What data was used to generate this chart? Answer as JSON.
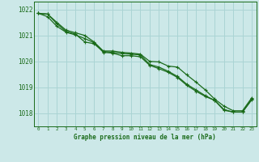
{
  "title": "Graphe pression niveau de la mer (hPa)",
  "background_color": "#cce8e8",
  "grid_color": "#aad4d4",
  "line_color": "#1a6b1a",
  "xlim": [
    -0.5,
    23.5
  ],
  "ylim": [
    1017.5,
    1022.3
  ],
  "yticks": [
    1018,
    1019,
    1020,
    1021,
    1022
  ],
  "xticks": [
    0,
    1,
    2,
    3,
    4,
    5,
    6,
    7,
    8,
    9,
    10,
    11,
    12,
    13,
    14,
    15,
    16,
    17,
    18,
    19,
    20,
    21,
    22,
    23
  ],
  "line1": [
    1021.85,
    1021.82,
    1021.5,
    1021.2,
    1021.1,
    1021.0,
    1020.75,
    1020.4,
    1020.4,
    1020.35,
    1020.32,
    1020.28,
    1020.0,
    1019.98,
    1019.82,
    1019.78,
    1019.48,
    1019.2,
    1018.9,
    1018.55,
    1018.28,
    1018.1,
    1018.1,
    1018.6
  ],
  "line2": [
    1021.85,
    1021.82,
    1021.45,
    1021.15,
    1021.05,
    1020.75,
    1020.68,
    1020.38,
    1020.35,
    1020.3,
    1020.28,
    1020.25,
    1019.88,
    1019.78,
    1019.62,
    1019.42,
    1019.12,
    1018.9,
    1018.68,
    1018.5,
    1018.15,
    1018.05,
    1018.05,
    1018.55
  ],
  "line3": [
    1021.85,
    1021.72,
    1021.35,
    1021.12,
    1021.02,
    1020.88,
    1020.72,
    1020.35,
    1020.32,
    1020.22,
    1020.22,
    1020.18,
    1019.85,
    1019.72,
    1019.58,
    1019.38,
    1019.08,
    1018.85,
    1018.65,
    1018.5,
    1018.12,
    1018.05,
    1018.05,
    1018.52
  ]
}
